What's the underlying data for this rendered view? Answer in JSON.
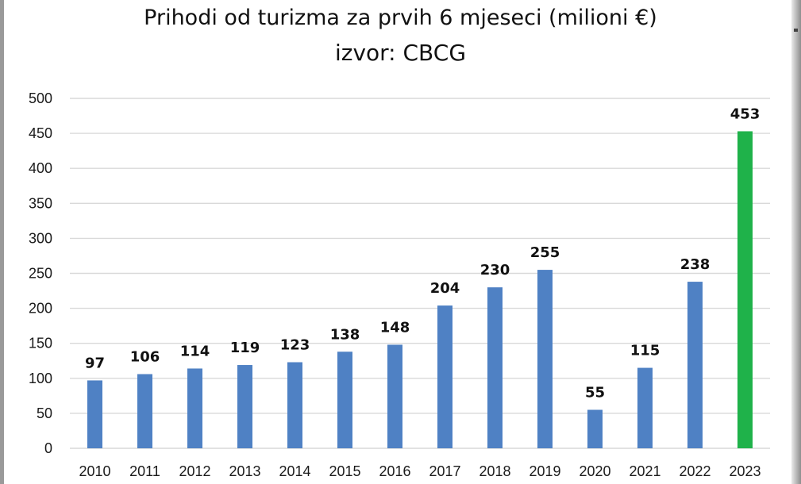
{
  "chart_data": {
    "type": "bar",
    "title": "Prihodi od turizma za prvih 6 mjeseci (milioni €)",
    "subtitle": "izvor: CBCG",
    "xlabel": "",
    "ylabel": "",
    "ylim": [
      0,
      500
    ],
    "yticks": [
      0,
      50,
      100,
      150,
      200,
      250,
      300,
      350,
      400,
      450,
      500
    ],
    "grid": true,
    "categories": [
      "2010",
      "2011",
      "2012",
      "2013",
      "2014",
      "2015",
      "2016",
      "2017",
      "2018",
      "2019",
      "2020",
      "2021",
      "2022",
      "2023"
    ],
    "values": [
      97,
      106,
      114,
      119,
      123,
      138,
      148,
      204,
      230,
      255,
      55,
      115,
      238,
      453
    ],
    "bar_colors": [
      "#4f81c4",
      "#4f81c4",
      "#4f81c4",
      "#4f81c4",
      "#4f81c4",
      "#4f81c4",
      "#4f81c4",
      "#4f81c4",
      "#4f81c4",
      "#4f81c4",
      "#4f81c4",
      "#4f81c4",
      "#4f81c4",
      "#1fb24a"
    ],
    "grid_color": "#d9d9d9"
  }
}
